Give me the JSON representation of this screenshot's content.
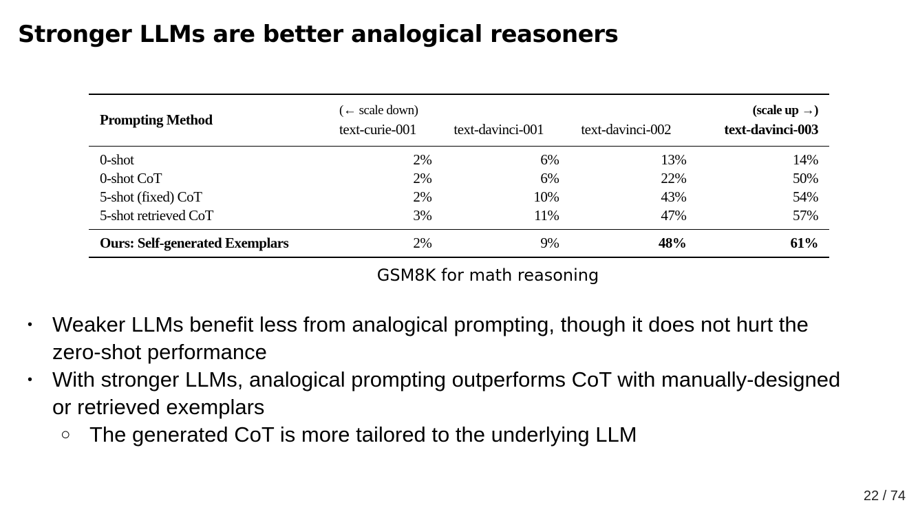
{
  "title": "Stronger LLMs are better analogical reasoners",
  "table": {
    "method_header": "Prompting Method",
    "scale_down_note": "(← scale down)",
    "scale_up_note": "(scale up →)",
    "columns": [
      "text-curie-001",
      "text-davinci-001",
      "text-davinci-002",
      "text-davinci-003"
    ],
    "rows": [
      {
        "method": "0-shot",
        "values": [
          "2%",
          "6%",
          "13%",
          "14%"
        ]
      },
      {
        "method": "0-shot CoT",
        "values": [
          "2%",
          "6%",
          "22%",
          "50%"
        ]
      },
      {
        "method": "5-shot (fixed) CoT",
        "values": [
          "2%",
          "10%",
          "43%",
          "54%"
        ]
      },
      {
        "method": "5-shot retrieved CoT",
        "values": [
          "3%",
          "11%",
          "47%",
          "57%"
        ]
      }
    ],
    "ours": {
      "method": "Ours: Self-generated Exemplars",
      "values": [
        "2%",
        "9%",
        "48%",
        "61%"
      ]
    }
  },
  "caption": "GSM8K for math reasoning",
  "bullets": [
    {
      "marker": "•",
      "text": "Weaker LLMs benefit less from analogical prompting, though it does not hurt the zero-shot performance"
    },
    {
      "marker": "•",
      "text": "With stronger LLMs, analogical prompting outperforms CoT with manually-designed or retrieved exemplars"
    }
  ],
  "sub_bullets": [
    {
      "marker": "○",
      "text": "The generated CoT is more tailored to the underlying LLM"
    }
  ],
  "page_number": "22 / 74"
}
